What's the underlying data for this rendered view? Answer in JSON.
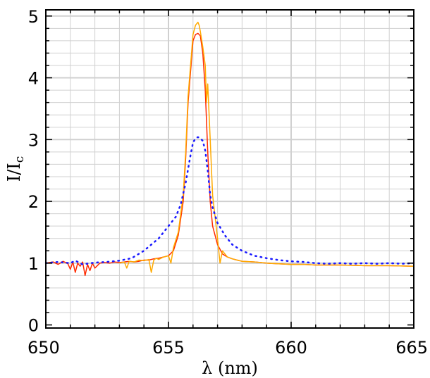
{
  "chart_data": {
    "type": "line",
    "xlabel": "λ (nm)",
    "ylabel": {
      "main": "I/I",
      "sub": "c"
    },
    "xlim": [
      650,
      665
    ],
    "ylim": [
      -0.05,
      5.1
    ],
    "xticks": [
      650,
      655,
      660,
      665
    ],
    "yticks": [
      0,
      1,
      2,
      3,
      4,
      5
    ],
    "xtick_labels": [
      "650",
      "655",
      "660",
      "665"
    ],
    "ytick_labels": [
      "0",
      "1",
      "2",
      "3",
      "4",
      "5"
    ],
    "grid": true,
    "colors": {
      "red": "#ff2a00",
      "orange": "#ffaa00",
      "blue": "#1a1aff",
      "grid": "#d0d0d0"
    },
    "series": [
      {
        "style": "solid",
        "color": "#ff2a00",
        "x": [
          650.0,
          650.3,
          650.5,
          650.7,
          650.9,
          651.0,
          651.1,
          651.2,
          651.3,
          651.4,
          651.5,
          651.6,
          651.7,
          651.8,
          651.9,
          652.0,
          652.2,
          652.4,
          652.6,
          652.8,
          653.0,
          653.2,
          653.4,
          653.6,
          653.8,
          654.0,
          654.2,
          654.4,
          654.6,
          654.8,
          655.0,
          655.2,
          655.4,
          655.6,
          655.7,
          655.8,
          655.9,
          656.0,
          656.1,
          656.2,
          656.3,
          656.4,
          656.5,
          656.6,
          656.7,
          656.8,
          657.0,
          657.2,
          657.4,
          657.6,
          657.8,
          658.0,
          658.5,
          659.0,
          659.5,
          660.0,
          660.5,
          661.0,
          662.0,
          663.0,
          664.0,
          665.0
        ],
        "y": [
          1.0,
          1.02,
          0.98,
          1.03,
          0.99,
          0.9,
          1.02,
          0.85,
          1.0,
          0.95,
          1.02,
          0.8,
          0.98,
          0.88,
          1.0,
          0.92,
          1.0,
          1.01,
          1.0,
          1.02,
          1.01,
          1.02,
          1.03,
          1.02,
          1.03,
          1.05,
          1.05,
          1.07,
          1.08,
          1.1,
          1.12,
          1.2,
          1.45,
          2.0,
          2.7,
          3.6,
          4.1,
          4.6,
          4.7,
          4.72,
          4.68,
          4.4,
          3.8,
          2.8,
          2.0,
          1.6,
          1.3,
          1.15,
          1.1,
          1.07,
          1.05,
          1.03,
          1.02,
          1.0,
          0.99,
          0.98,
          0.98,
          0.97,
          0.97,
          0.96,
          0.96,
          0.95
        ]
      },
      {
        "style": "solid",
        "color": "#ffaa00",
        "x": [
          653.0,
          653.2,
          653.3,
          653.4,
          653.6,
          653.8,
          654.0,
          654.2,
          654.3,
          654.4,
          654.5,
          654.6,
          654.8,
          655.0,
          655.1,
          655.2,
          655.4,
          655.6,
          655.7,
          655.8,
          655.9,
          656.0,
          656.1,
          656.2,
          656.25,
          656.3,
          656.4,
          656.5,
          656.55,
          656.6,
          656.7,
          656.8,
          657.0,
          657.1,
          657.2,
          657.4,
          657.6,
          657.8,
          658.0,
          658.5,
          659.0,
          659.5,
          660.0,
          660.5,
          661.0,
          662.0,
          663.0,
          664.0,
          665.0
        ],
        "y": [
          1.0,
          1.02,
          0.92,
          1.03,
          1.02,
          1.05,
          1.04,
          1.06,
          0.85,
          1.05,
          1.08,
          1.06,
          1.1,
          1.12,
          1.0,
          1.25,
          1.5,
          2.1,
          2.8,
          3.7,
          4.2,
          4.7,
          4.85,
          4.9,
          4.85,
          4.75,
          4.5,
          4.2,
          3.6,
          3.9,
          3.0,
          2.1,
          1.4,
          1.0,
          1.2,
          1.1,
          1.07,
          1.05,
          1.03,
          1.02,
          1.0,
          0.99,
          0.98,
          0.98,
          0.97,
          0.97,
          0.96,
          0.96,
          0.95
        ]
      },
      {
        "style": "dotted",
        "color": "#1a1aff",
        "x": [
          650.0,
          650.5,
          651.0,
          651.2,
          651.5,
          652.0,
          652.5,
          653.0,
          653.5,
          654.0,
          654.3,
          654.6,
          655.0,
          655.3,
          655.5,
          655.7,
          655.9,
          656.0,
          656.1,
          656.2,
          656.3,
          656.4,
          656.5,
          656.6,
          656.7,
          656.8,
          657.0,
          657.3,
          657.6,
          658.0,
          658.5,
          659.0,
          659.5,
          660.0,
          660.5,
          661.0,
          661.5,
          662.0,
          662.5,
          663.0,
          663.5,
          664.0,
          664.5,
          665.0
        ],
        "y": [
          1.0,
          1.02,
          1.0,
          1.04,
          0.98,
          1.01,
          1.02,
          1.04,
          1.08,
          1.2,
          1.3,
          1.4,
          1.6,
          1.75,
          1.95,
          2.3,
          2.75,
          2.95,
          3.02,
          3.04,
          3.02,
          2.98,
          2.82,
          2.5,
          2.1,
          1.9,
          1.65,
          1.45,
          1.3,
          1.2,
          1.12,
          1.08,
          1.05,
          1.03,
          1.02,
          1.0,
          0.99,
          1.0,
          0.99,
          1.0,
          0.99,
          1.0,
          0.99,
          1.0
        ]
      }
    ]
  }
}
